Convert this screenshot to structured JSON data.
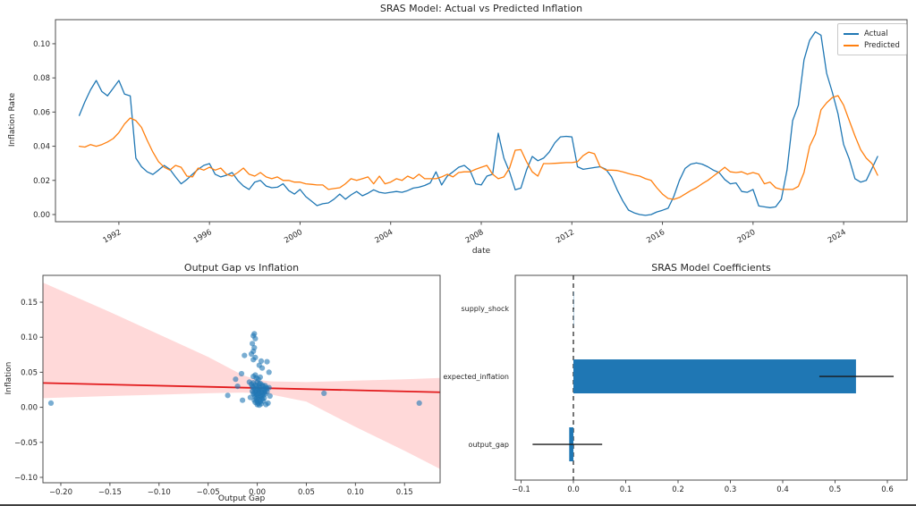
{
  "figure": {
    "background": "#ffffff"
  },
  "chart_data": [
    {
      "id": "actual-vs-predicted",
      "type": "line",
      "title": "SRAS Model: Actual vs Predicted Inflation",
      "xlabel": "date",
      "ylabel": "Inflation Rate",
      "legend_position": "upper right",
      "x_start": 1990.25,
      "x_step": 0.25,
      "xlim": [
        1989.2,
        2026.8
      ],
      "ylim": [
        -0.0042,
        0.1141
      ],
      "xticks": [
        1992,
        1996,
        2000,
        2004,
        2008,
        2012,
        2016,
        2020,
        2024
      ],
      "xtick_labels": [
        "1992",
        "1996",
        "2000",
        "2004",
        "2008",
        "2012",
        "2016",
        "2020",
        "2024"
      ],
      "yticks": [
        0.0,
        0.02,
        0.04,
        0.06,
        0.08,
        0.1
      ],
      "ytick_labels": [
        "0.00",
        "0.02",
        "0.04",
        "0.06",
        "0.08",
        "0.10"
      ],
      "series": [
        {
          "name": "Actual",
          "color": "#1f77b4",
          "values": [
            0.058,
            0.066,
            0.073,
            0.0785,
            0.072,
            0.0695,
            0.074,
            0.0785,
            0.0705,
            0.0695,
            0.033,
            0.028,
            0.025,
            0.0235,
            0.026,
            0.0288,
            0.0265,
            0.022,
            0.018,
            0.0205,
            0.0236,
            0.0265,
            0.0288,
            0.0298,
            0.0236,
            0.022,
            0.023,
            0.0246,
            0.02,
            0.0167,
            0.0147,
            0.019,
            0.02,
            0.0167,
            0.0157,
            0.016,
            0.018,
            0.014,
            0.012,
            0.0147,
            0.0105,
            0.0079,
            0.0052,
            0.0063,
            0.0068,
            0.009,
            0.012,
            0.009,
            0.0115,
            0.0135,
            0.011,
            0.0125,
            0.0145,
            0.013,
            0.0125,
            0.013,
            0.0135,
            0.013,
            0.014,
            0.0155,
            0.016,
            0.017,
            0.0185,
            0.025,
            0.0173,
            0.0225,
            0.025,
            0.0277,
            0.0288,
            0.026,
            0.018,
            0.0173,
            0.0225,
            0.0236,
            0.0476,
            0.033,
            0.025,
            0.0145,
            0.0155,
            0.026,
            0.034,
            0.0315,
            0.033,
            0.0366,
            0.042,
            0.0455,
            0.0458,
            0.0455,
            0.028,
            0.0265,
            0.027,
            0.0275,
            0.028,
            0.0265,
            0.022,
            0.0145,
            0.008,
            0.0026,
            0.001,
            0.0,
            -0.0005,
            0.0,
            0.0015,
            0.0025,
            0.0037,
            0.0105,
            0.02,
            0.027,
            0.0295,
            0.0302,
            0.0295,
            0.028,
            0.026,
            0.0246,
            0.0205,
            0.018,
            0.0185,
            0.0135,
            0.013,
            0.0147,
            0.005,
            0.0045,
            0.004,
            0.0045,
            0.009,
            0.026,
            0.055,
            0.064,
            0.0905,
            0.102,
            0.107,
            0.105,
            0.0827,
            0.0717,
            0.059,
            0.041,
            0.0325,
            0.021,
            0.019,
            0.02,
            0.027,
            0.034
          ]
        },
        {
          "name": "Predicted",
          "color": "#ff7f0e",
          "values": [
            0.04,
            0.0395,
            0.041,
            0.04,
            0.041,
            0.0425,
            0.0445,
            0.048,
            0.053,
            0.0565,
            0.055,
            0.051,
            0.0435,
            0.0366,
            0.031,
            0.0277,
            0.026,
            0.0288,
            0.0277,
            0.0225,
            0.022,
            0.0272,
            0.026,
            0.0277,
            0.026,
            0.0272,
            0.0236,
            0.0225,
            0.0246,
            0.0272,
            0.0236,
            0.0225,
            0.0246,
            0.022,
            0.021,
            0.022,
            0.02,
            0.02,
            0.019,
            0.019,
            0.018,
            0.0177,
            0.0173,
            0.0173,
            0.0147,
            0.0152,
            0.0157,
            0.018,
            0.021,
            0.02,
            0.021,
            0.022,
            0.018,
            0.0225,
            0.018,
            0.019,
            0.021,
            0.02,
            0.0225,
            0.021,
            0.0236,
            0.021,
            0.021,
            0.021,
            0.022,
            0.0236,
            0.022,
            0.0246,
            0.025,
            0.025,
            0.0265,
            0.0277,
            0.0288,
            0.0236,
            0.021,
            0.022,
            0.0272,
            0.0377,
            0.038,
            0.031,
            0.025,
            0.0225,
            0.0298,
            0.0298,
            0.03,
            0.0302,
            0.0304,
            0.0304,
            0.031,
            0.0345,
            0.0366,
            0.0356,
            0.028,
            0.026,
            0.026,
            0.0258,
            0.025,
            0.024,
            0.0232,
            0.0225,
            0.021,
            0.02,
            0.0157,
            0.012,
            0.0094,
            0.0089,
            0.01,
            0.012,
            0.014,
            0.0157,
            0.018,
            0.02,
            0.0225,
            0.025,
            0.0277,
            0.025,
            0.0246,
            0.025,
            0.0236,
            0.0246,
            0.0236,
            0.018,
            0.019,
            0.0157,
            0.0147,
            0.0147,
            0.0147,
            0.0165,
            0.0246,
            0.04,
            0.047,
            0.0613,
            0.0654,
            0.0685,
            0.0696,
            0.064,
            0.055,
            0.046,
            0.038,
            0.033,
            0.0298,
            0.023
          ]
        }
      ]
    },
    {
      "id": "output-gap-vs-inflation",
      "type": "scatter",
      "title": "Output Gap vs Inflation",
      "xlabel": "Output Gap",
      "ylabel": "Inflation",
      "xlim": [
        -0.2182,
        0.1862
      ],
      "ylim": [
        -0.1077,
        0.1883
      ],
      "xticks": [
        -0.2,
        -0.15,
        -0.1,
        -0.05,
        0.0,
        0.05,
        0.1,
        0.15
      ],
      "xtick_labels": [
        "−0.20",
        "−0.15",
        "−0.10",
        "−0.05",
        "0.00",
        "0.05",
        "0.10",
        "0.15"
      ],
      "yticks": [
        -0.1,
        -0.05,
        0.0,
        0.05,
        0.1,
        0.15
      ],
      "ytick_labels": [
        "−0.10",
        "−0.05",
        "0.00",
        "0.05",
        "0.10",
        "0.15"
      ],
      "point_color": "rgba(31,119,180,0.6)",
      "points": [
        [
          -0.21,
          0.006
        ],
        [
          -0.03,
          0.017
        ],
        [
          -0.022,
          0.04
        ],
        [
          -0.02,
          0.03
        ],
        [
          -0.015,
          0.01
        ],
        [
          -0.016,
          0.048
        ],
        [
          0.068,
          0.02
        ],
        [
          0.165,
          0.006
        ],
        [
          -0.003,
          0.105
        ],
        [
          -0.004,
          0.102
        ],
        [
          -0.002,
          0.098
        ],
        [
          -0.005,
          0.091
        ],
        [
          -0.003,
          0.085
        ],
        [
          -0.004,
          0.08
        ],
        [
          -0.006,
          0.076
        ],
        [
          -0.013,
          0.074
        ],
        [
          -0.002,
          0.071
        ],
        [
          -0.004,
          0.068
        ],
        [
          0.004,
          0.066
        ],
        [
          0.01,
          0.065
        ],
        [
          0.002,
          0.06
        ],
        [
          0.005,
          0.056
        ],
        [
          0.012,
          0.05
        ],
        [
          -0.002,
          0.046
        ],
        [
          -0.004,
          0.044
        ],
        [
          0.003,
          0.043
        ],
        [
          -0.001,
          0.042
        ],
        [
          0.001,
          0.04
        ],
        [
          -0.008,
          0.036
        ],
        [
          -0.004,
          0.035
        ],
        [
          0.0,
          0.036
        ],
        [
          0.003,
          0.034
        ],
        [
          -0.006,
          0.033
        ],
        [
          -0.002,
          0.032
        ],
        [
          0.002,
          0.033
        ],
        [
          0.005,
          0.032
        ],
        [
          0.008,
          0.031
        ],
        [
          -0.005,
          0.03
        ],
        [
          -0.001,
          0.03
        ],
        [
          0.002,
          0.029
        ],
        [
          0.006,
          0.03
        ],
        [
          0.009,
          0.028
        ],
        [
          -0.004,
          0.028
        ],
        [
          0.0,
          0.027
        ],
        [
          0.003,
          0.027
        ],
        [
          0.007,
          0.026
        ],
        [
          0.01,
          0.027
        ],
        [
          -0.003,
          0.026
        ],
        [
          -0.001,
          0.025
        ],
        [
          0.002,
          0.024
        ],
        [
          0.005,
          0.025
        ],
        [
          0.008,
          0.024
        ],
        [
          -0.005,
          0.023
        ],
        [
          -0.002,
          0.022
        ],
        [
          0.001,
          0.022
        ],
        [
          0.004,
          0.022
        ],
        [
          0.007,
          0.021
        ],
        [
          0.01,
          0.022
        ],
        [
          -0.004,
          0.02
        ],
        [
          -0.001,
          0.019
        ],
        [
          0.002,
          0.02
        ],
        [
          0.005,
          0.019
        ],
        [
          0.008,
          0.019
        ],
        [
          -0.003,
          0.018
        ],
        [
          0.0,
          0.017
        ],
        [
          0.003,
          0.016
        ],
        [
          0.006,
          0.017
        ],
        [
          -0.002,
          0.015
        ],
        [
          0.001,
          0.014
        ],
        [
          0.004,
          0.015
        ],
        [
          0.007,
          0.013
        ],
        [
          -0.001,
          0.012
        ],
        [
          0.002,
          0.011
        ],
        [
          0.005,
          0.012
        ],
        [
          -0.003,
          0.01
        ],
        [
          0.0,
          0.009
        ],
        [
          0.003,
          0.008
        ],
        [
          0.006,
          0.009
        ],
        [
          -0.002,
          0.007
        ],
        [
          0.001,
          0.006
        ],
        [
          0.004,
          0.005
        ],
        [
          0.0,
          0.004
        ],
        [
          0.002,
          0.003
        ],
        [
          0.009,
          0.004
        ],
        [
          0.011,
          0.006
        ],
        [
          0.012,
          0.028
        ],
        [
          0.013,
          0.016
        ],
        [
          -0.007,
          0.014
        ]
      ],
      "regression_line": {
        "color": "#e21a1c",
        "x": [
          -0.2182,
          0.1862
        ],
        "y": [
          0.0347,
          0.0215
        ]
      },
      "confidence_band": {
        "color": "rgba(255,0,0,0.15)",
        "x": [
          -0.2182,
          -0.15,
          -0.1,
          -0.05,
          -0.015,
          0.0,
          0.015,
          0.05,
          0.1,
          0.15,
          0.1862
        ],
        "upper": [
          0.178,
          0.136,
          0.104,
          0.072,
          0.046,
          0.039,
          0.037,
          0.036,
          0.038,
          0.04,
          0.042
        ],
        "lower": [
          0.013,
          0.016,
          0.018,
          0.02,
          0.021,
          0.02,
          0.018,
          0.008,
          -0.028,
          -0.062,
          -0.088
        ]
      }
    },
    {
      "id": "sras-coefficients",
      "type": "bar",
      "orientation": "horizontal",
      "title": "SRAS Model Coefficients",
      "xlabel": "",
      "ylabel": "",
      "xlim": [
        -0.1111,
        0.6376
      ],
      "xticks": [
        -0.1,
        0.0,
        0.1,
        0.2,
        0.3,
        0.4,
        0.5,
        0.6
      ],
      "xtick_labels": [
        "−0.1",
        "0.0",
        "0.1",
        "0.2",
        "0.3",
        "0.4",
        "0.5",
        "0.6"
      ],
      "categories": [
        "supply_shock",
        "expected_inflation",
        "output_gap"
      ],
      "values": [
        0.0005,
        0.54,
        -0.008
      ],
      "error_low": [
        -0.001,
        0.47,
        -0.078
      ],
      "error_high": [
        0.0015,
        0.612,
        0.055
      ],
      "bar_color": "#1f77b4",
      "error_color": "#1a1a1a",
      "zero_line": {
        "x": 0,
        "style": "dashed",
        "color": "#1a1a1a"
      }
    }
  ]
}
